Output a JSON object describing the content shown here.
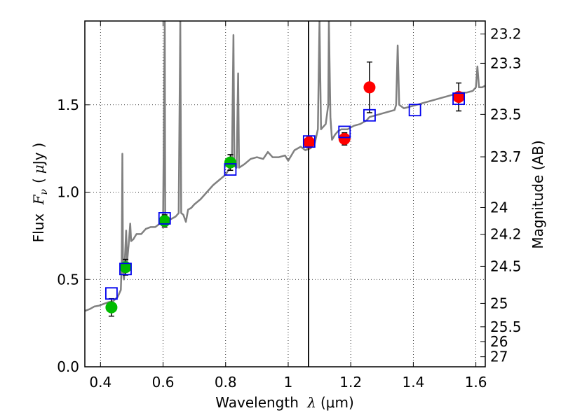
{
  "chart_data": {
    "type": "scatter",
    "xlabel": "Wavelength  λ (μm)",
    "xlabel_parts": {
      "text": "Wavelength ",
      "symbol": "λ",
      "unit": "(μm)"
    },
    "ylabel": "Flux  Fν ( μJy )",
    "ylabel_parts": {
      "text": "Flux ",
      "symbol": "F",
      "subscript": "ν",
      "open": "(",
      "unit_prefix": "μ",
      "unit": "Jy",
      "close": ")"
    },
    "y2label": "Magnitude (AB)",
    "xlim": [
      0.35,
      1.63
    ],
    "ylim": [
      0.0,
      1.98
    ],
    "grid": true,
    "x_ticks": [
      0.4,
      0.6,
      0.8,
      1.0,
      1.2,
      1.4,
      1.6
    ],
    "x_tick_labels": [
      "0.4",
      "0.6",
      "0.8",
      "1",
      "1.2",
      "1.4",
      "1.6"
    ],
    "y_ticks": [
      0.0,
      0.5,
      1.0,
      1.5
    ],
    "y_tick_labels": [
      "0.0",
      "0.5",
      "1.0",
      "1.5"
    ],
    "magnitude_ticks": [
      {
        "value": 23.2,
        "label": "23.2"
      },
      {
        "value": 23.3,
        "label": "23.3"
      },
      {
        "value": 23.5,
        "label": "23.5"
      },
      {
        "value": 23.7,
        "label": "23.7"
      },
      {
        "value": 24.0,
        "label": "24"
      },
      {
        "value": 24.2,
        "label": "24.2"
      },
      {
        "value": 24.5,
        "label": "24.5"
      },
      {
        "value": 25.0,
        "label": "25"
      },
      {
        "value": 25.5,
        "label": "25.5"
      },
      {
        "value": 26.0,
        "label": "26"
      },
      {
        "value": 27.0,
        "label": "27"
      }
    ],
    "vertical_line_x": 1.065,
    "series": [
      {
        "name": "observed (green)",
        "color": "#00bb00",
        "marker": "circle",
        "points": [
          {
            "x": 0.435,
            "y": 0.34,
            "err": 0.05
          },
          {
            "x": 0.48,
            "y": 0.57,
            "err": 0.045
          },
          {
            "x": 0.605,
            "y": 0.835,
            "err": 0.035
          },
          {
            "x": 0.815,
            "y": 1.17,
            "err": 0.045
          }
        ]
      },
      {
        "name": "observed (red)",
        "color": "#ff0000",
        "marker": "circle",
        "points": [
          {
            "x": 1.067,
            "y": 1.285,
            "err": 0.03
          },
          {
            "x": 1.18,
            "y": 1.305,
            "err": 0.035
          },
          {
            "x": 1.26,
            "y": 1.6,
            "err": 0.145
          },
          {
            "x": 1.545,
            "y": 1.545,
            "err": 0.08
          }
        ]
      },
      {
        "name": "model (blue squares)",
        "color": "#0000ee",
        "marker": "square",
        "points": [
          {
            "x": 0.435,
            "y": 0.42
          },
          {
            "x": 0.48,
            "y": 0.56
          },
          {
            "x": 0.605,
            "y": 0.85
          },
          {
            "x": 0.815,
            "y": 1.13
          },
          {
            "x": 1.067,
            "y": 1.29
          },
          {
            "x": 1.18,
            "y": 1.345
          },
          {
            "x": 1.26,
            "y": 1.44
          },
          {
            "x": 1.405,
            "y": 1.47
          },
          {
            "x": 1.545,
            "y": 1.535
          }
        ]
      },
      {
        "name": "template spectrum",
        "color": "#808080",
        "marker": "line",
        "points": [
          [
            0.35,
            0.32
          ],
          [
            0.365,
            0.33
          ],
          [
            0.38,
            0.345
          ],
          [
            0.395,
            0.35
          ],
          [
            0.41,
            0.36
          ],
          [
            0.425,
            0.37
          ],
          [
            0.44,
            0.375
          ],
          [
            0.455,
            0.4
          ],
          [
            0.465,
            0.44
          ],
          [
            0.468,
            0.6
          ],
          [
            0.47,
            1.22
          ],
          [
            0.472,
            0.55
          ],
          [
            0.475,
            0.5
          ],
          [
            0.482,
            0.78
          ],
          [
            0.485,
            0.6
          ],
          [
            0.49,
            0.7
          ],
          [
            0.495,
            0.82
          ],
          [
            0.498,
            0.72
          ],
          [
            0.505,
            0.73
          ],
          [
            0.515,
            0.76
          ],
          [
            0.53,
            0.76
          ],
          [
            0.545,
            0.79
          ],
          [
            0.56,
            0.8
          ],
          [
            0.575,
            0.8
          ],
          [
            0.59,
            0.82
          ],
          [
            0.6,
            0.82
          ],
          [
            0.6055,
            1.98
          ],
          [
            0.607,
            0.82
          ],
          [
            0.62,
            0.84
          ],
          [
            0.64,
            0.86
          ],
          [
            0.65,
            0.88
          ],
          [
            0.655,
            1.98
          ],
          [
            0.658,
            0.88
          ],
          [
            0.665,
            0.87
          ],
          [
            0.673,
            0.83
          ],
          [
            0.68,
            0.9
          ],
          [
            0.69,
            0.91
          ],
          [
            0.7,
            0.93
          ],
          [
            0.72,
            0.96
          ],
          [
            0.74,
            1.0
          ],
          [
            0.76,
            1.04
          ],
          [
            0.78,
            1.07
          ],
          [
            0.8,
            1.1
          ],
          [
            0.81,
            1.13
          ],
          [
            0.82,
            1.16
          ],
          [
            0.825,
            1.9
          ],
          [
            0.828,
            1.15
          ],
          [
            0.835,
            1.14
          ],
          [
            0.84,
            1.68
          ],
          [
            0.843,
            1.14
          ],
          [
            0.86,
            1.16
          ],
          [
            0.88,
            1.19
          ],
          [
            0.9,
            1.2
          ],
          [
            0.92,
            1.19
          ],
          [
            0.935,
            1.23
          ],
          [
            0.95,
            1.2
          ],
          [
            0.97,
            1.2
          ],
          [
            0.99,
            1.21
          ],
          [
            1.0,
            1.18
          ],
          [
            1.02,
            1.24
          ],
          [
            1.04,
            1.26
          ],
          [
            1.055,
            1.24
          ],
          [
            1.07,
            1.25
          ],
          [
            1.085,
            1.28
          ],
          [
            1.09,
            1.32
          ],
          [
            1.095,
            1.36
          ],
          [
            1.1,
            1.98
          ],
          [
            1.105,
            1.36
          ],
          [
            1.12,
            1.39
          ],
          [
            1.128,
            1.5
          ],
          [
            1.13,
            1.98
          ],
          [
            1.135,
            1.43
          ],
          [
            1.14,
            1.3
          ],
          [
            1.15,
            1.33
          ],
          [
            1.16,
            1.35
          ],
          [
            1.17,
            1.36
          ],
          [
            1.19,
            1.36
          ],
          [
            1.21,
            1.38
          ],
          [
            1.23,
            1.39
          ],
          [
            1.25,
            1.41
          ],
          [
            1.26,
            1.43
          ],
          [
            1.28,
            1.44
          ],
          [
            1.3,
            1.45
          ],
          [
            1.32,
            1.46
          ],
          [
            1.34,
            1.47
          ],
          [
            1.345,
            1.5
          ],
          [
            1.35,
            1.84
          ],
          [
            1.355,
            1.5
          ],
          [
            1.37,
            1.48
          ],
          [
            1.39,
            1.49
          ],
          [
            1.41,
            1.5
          ],
          [
            1.43,
            1.51
          ],
          [
            1.45,
            1.52
          ],
          [
            1.47,
            1.53
          ],
          [
            1.49,
            1.54
          ],
          [
            1.51,
            1.55
          ],
          [
            1.53,
            1.56
          ],
          [
            1.55,
            1.57
          ],
          [
            1.57,
            1.57
          ],
          [
            1.59,
            1.58
          ],
          [
            1.6,
            1.6
          ],
          [
            1.605,
            1.72
          ],
          [
            1.61,
            1.6
          ],
          [
            1.62,
            1.6
          ],
          [
            1.63,
            1.61
          ]
        ]
      }
    ]
  }
}
